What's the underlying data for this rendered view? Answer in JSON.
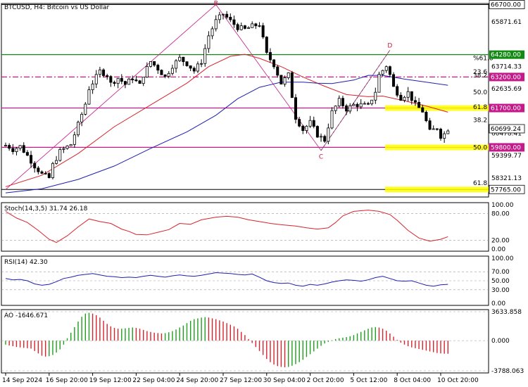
{
  "header": {
    "title": "BTCUSD, H4:  Bitcoin vs US Dollar"
  },
  "chart_data": {
    "type": "candlestick",
    "symbol": "BTCUSD",
    "timeframe": "H4",
    "price_axis": {
      "range": [
        57765,
        66700
      ],
      "ticks": [
        "65871.61",
        "63714.33",
        "62635.69",
        "60478.41",
        "59399.77",
        "58321.13"
      ]
    },
    "price_levels": [
      {
        "value": 66700,
        "label": "66700.00",
        "style": "line",
        "color": "#000000"
      },
      {
        "value": 64280,
        "label": "64280.00",
        "style": "line",
        "color": "#138a13"
      },
      {
        "value": 63200,
        "label": "63200.00",
        "style": "dashdot",
        "color": "#c51a8a"
      },
      {
        "value": 61700,
        "label": "61700.00",
        "style": "line",
        "color": "#c51a8a"
      },
      {
        "value": 59800,
        "label": "59800.00",
        "style": "line",
        "color": "#c51a8a"
      },
      {
        "value": 57765,
        "label": "57765.00",
        "style": "line",
        "color": "#000000"
      }
    ],
    "current_price": {
      "value": 60699,
      "label": "60699.24"
    },
    "fib_labels": [
      {
        "text": "%61.8",
        "price": 64120
      },
      {
        "text": "23.6",
        "price": 63460
      },
      {
        "text": "38.2",
        "price": 63290
      },
      {
        "text": "50.0",
        "price": 62470
      },
      {
        "text": "61.8",
        "price": 61750
      },
      {
        "text": "38.2",
        "price": 61130
      },
      {
        "text": "50.0",
        "price": 59790
      },
      {
        "text": "61.8",
        "price": 58080
      }
    ],
    "highlight_zones": [
      {
        "price": 61700
      },
      {
        "price": 59800
      },
      {
        "price": 57765
      }
    ],
    "wave_labels": [
      {
        "text": "B",
        "bar": 58,
        "price": 66660
      },
      {
        "text": "C",
        "bar": 87,
        "price": 59250
      },
      {
        "text": "D",
        "bar": 106,
        "price": 64630
      }
    ],
    "x_labels": [
      "14 Sep 2024",
      "16 Sep 20:00",
      "19 Sep 12:00",
      "22 Sep 04:00",
      "24 Sep 20:00",
      "27 Sep 12:00",
      "30 Sep 04:00",
      "2 Oct 20:00",
      "5 Oct 12:00",
      "8 Oct 04:00",
      "10 Oct 20:00"
    ],
    "x_label_bars": [
      0,
      12,
      24,
      36,
      48,
      60,
      72,
      84,
      96,
      108,
      120
    ],
    "anchors": [
      [
        0,
        59900
      ],
      [
        1,
        59820
      ],
      [
        2,
        59700
      ],
      [
        4,
        59850
      ],
      [
        6,
        59400
      ],
      [
        8,
        58900
      ],
      [
        10,
        58500
      ],
      [
        12,
        58320
      ],
      [
        13,
        58950
      ],
      [
        15,
        59600
      ],
      [
        18,
        59950
      ],
      [
        20,
        60900
      ],
      [
        22,
        61900
      ],
      [
        23,
        62650
      ],
      [
        25,
        63200
      ],
      [
        26,
        63480
      ],
      [
        28,
        63300
      ],
      [
        29,
        62880
      ],
      [
        31,
        63150
      ],
      [
        33,
        62850
      ],
      [
        35,
        63150
      ],
      [
        37,
        62800
      ],
      [
        38,
        63300
      ],
      [
        40,
        63950
      ],
      [
        42,
        63600
      ],
      [
        44,
        63200
      ],
      [
        46,
        63750
      ],
      [
        48,
        64100
      ],
      [
        50,
        63850
      ],
      [
        52,
        63500
      ],
      [
        54,
        63950
      ],
      [
        56,
        65200
      ],
      [
        58,
        65900
      ],
      [
        60,
        66250
      ],
      [
        62,
        65900
      ],
      [
        64,
        65600
      ],
      [
        66,
        65500
      ],
      [
        68,
        65650
      ],
      [
        70,
        65750
      ],
      [
        72,
        64300
      ],
      [
        74,
        63800
      ],
      [
        76,
        62900
      ],
      [
        78,
        63300
      ],
      [
        80,
        61250
      ],
      [
        82,
        60650
      ],
      [
        84,
        61000
      ],
      [
        86,
        60400
      ],
      [
        88,
        60150
      ],
      [
        90,
        61500
      ],
      [
        92,
        62050
      ],
      [
        94,
        61650
      ],
      [
        96,
        61850
      ],
      [
        98,
        61850
      ],
      [
        100,
        61800
      ],
      [
        102,
        62500
      ],
      [
        103,
        63300
      ],
      [
        105,
        63750
      ],
      [
        106,
        63300
      ],
      [
        107,
        62700
      ],
      [
        109,
        62200
      ],
      [
        111,
        62450
      ],
      [
        113,
        61850
      ],
      [
        115,
        61550
      ],
      [
        116,
        61050
      ],
      [
        117,
        60550
      ],
      [
        119,
        60750
      ],
      [
        120,
        60350
      ],
      [
        121,
        60450
      ],
      [
        122,
        60700
      ]
    ],
    "series": [
      {
        "name": "MA fast",
        "color": "#d9232c",
        "points": [
          [
            0,
            57900
          ],
          [
            10,
            58450
          ],
          [
            20,
            59500
          ],
          [
            30,
            60800
          ],
          [
            40,
            61850
          ],
          [
            50,
            62900
          ],
          [
            56,
            63700
          ],
          [
            62,
            64200
          ],
          [
            66,
            64300
          ],
          [
            70,
            64100
          ],
          [
            76,
            63700
          ],
          [
            82,
            63200
          ],
          [
            88,
            62750
          ],
          [
            94,
            62350
          ],
          [
            100,
            62250
          ],
          [
            104,
            62280
          ],
          [
            110,
            62050
          ],
          [
            116,
            61800
          ],
          [
            122,
            61500
          ]
        ]
      },
      {
        "name": "MA slow",
        "color": "#1f1fb0",
        "points": [
          [
            0,
            57600
          ],
          [
            10,
            57800
          ],
          [
            20,
            58250
          ],
          [
            30,
            58900
          ],
          [
            40,
            59750
          ],
          [
            50,
            60550
          ],
          [
            58,
            61350
          ],
          [
            64,
            62150
          ],
          [
            70,
            62700
          ],
          [
            76,
            62950
          ],
          [
            82,
            62950
          ],
          [
            86,
            62900
          ],
          [
            90,
            62880
          ],
          [
            96,
            63050
          ],
          [
            100,
            63280
          ],
          [
            104,
            63280
          ],
          [
            110,
            63100
          ],
          [
            116,
            62950
          ],
          [
            122,
            62800
          ]
        ]
      }
    ],
    "indicators": [
      {
        "name": "Stoch(14,3,5)",
        "label": "Stoch(14,3,5) 31.74 26.18",
        "ticks": [
          "100.00",
          "80.00",
          "20.00",
          "0.00"
        ],
        "ylim": [
          0,
          100
        ],
        "series": [
          {
            "color": "#d9232c",
            "points": [
              [
                0,
                85
              ],
              [
                3,
                70
              ],
              [
                6,
                60
              ],
              [
                9,
                42
              ],
              [
                12,
                22
              ],
              [
                14,
                15
              ],
              [
                17,
                30
              ],
              [
                20,
                50
              ],
              [
                23,
                68
              ],
              [
                26,
                62
              ],
              [
                29,
                58
              ],
              [
                32,
                45
              ],
              [
                34,
                40
              ],
              [
                36,
                33
              ],
              [
                39,
                32
              ],
              [
                42,
                38
              ],
              [
                45,
                44
              ],
              [
                48,
                58
              ],
              [
                51,
                56
              ],
              [
                54,
                66
              ],
              [
                58,
                72
              ],
              [
                61,
                74
              ],
              [
                64,
                72
              ],
              [
                67,
                66
              ],
              [
                70,
                62
              ],
              [
                73,
                58
              ],
              [
                76,
                55
              ],
              [
                80,
                52
              ],
              [
                83,
                48
              ],
              [
                86,
                45
              ],
              [
                89,
                48
              ],
              [
                91,
                60
              ],
              [
                93,
                75
              ],
              [
                96,
                85
              ],
              [
                100,
                88
              ],
              [
                103,
                85
              ],
              [
                106,
                78
              ],
              [
                108,
                65
              ],
              [
                111,
                42
              ],
              [
                114,
                25
              ],
              [
                117,
                18
              ],
              [
                120,
                22
              ],
              [
                122,
                28
              ]
            ]
          }
        ]
      },
      {
        "name": "RSI(14)",
        "label": "RSI(14) 42.30",
        "ticks": [
          "100.00",
          "70.00",
          "50.00",
          "30.00",
          "0.00"
        ],
        "ylim": [
          0,
          100
        ],
        "series": [
          {
            "color": "#1f1fb0",
            "points": [
              [
                0,
                55
              ],
              [
                2,
                52
              ],
              [
                4,
                53
              ],
              [
                6,
                50
              ],
              [
                8,
                43
              ],
              [
                10,
                40
              ],
              [
                12,
                42
              ],
              [
                14,
                48
              ],
              [
                16,
                55
              ],
              [
                18,
                58
              ],
              [
                20,
                62
              ],
              [
                22,
                64
              ],
              [
                24,
                66
              ],
              [
                26,
                63
              ],
              [
                28,
                60
              ],
              [
                30,
                59
              ],
              [
                32,
                57
              ],
              [
                34,
                58
              ],
              [
                36,
                57
              ],
              [
                38,
                60
              ],
              [
                40,
                62
              ],
              [
                42,
                60
              ],
              [
                44,
                58
              ],
              [
                46,
                61
              ],
              [
                48,
                63
              ],
              [
                50,
                61
              ],
              [
                52,
                60
              ],
              [
                54,
                62
              ],
              [
                56,
                65
              ],
              [
                58,
                68
              ],
              [
                60,
                67
              ],
              [
                62,
                66
              ],
              [
                64,
                64
              ],
              [
                66,
                63
              ],
              [
                68,
                65
              ],
              [
                70,
                58
              ],
              [
                72,
                50
              ],
              [
                74,
                46
              ],
              [
                76,
                44
              ],
              [
                78,
                45
              ],
              [
                80,
                40
              ],
              [
                82,
                38
              ],
              [
                84,
                42
              ],
              [
                86,
                40
              ],
              [
                88,
                43
              ],
              [
                90,
                47
              ],
              [
                92,
                50
              ],
              [
                94,
                52
              ],
              [
                96,
                51
              ],
              [
                98,
                49
              ],
              [
                100,
                52
              ],
              [
                102,
                57
              ],
              [
                104,
                60
              ],
              [
                106,
                55
              ],
              [
                108,
                50
              ],
              [
                110,
                49
              ],
              [
                112,
                50
              ],
              [
                114,
                45
              ],
              [
                116,
                40
              ],
              [
                118,
                38
              ],
              [
                120,
                41
              ],
              [
                122,
                42
              ]
            ]
          }
        ]
      },
      {
        "name": "AO",
        "label": "AO -1646.671",
        "ticks": [
          "3633.858",
          "0.000",
          "-3788.063"
        ],
        "ylim": [
          -3788,
          3634
        ],
        "values": [
          -500,
          -600,
          -700,
          -800,
          -850,
          -900,
          -950,
          -1000,
          -1300,
          -1600,
          -1900,
          -2000,
          -1950,
          -1800,
          -1500,
          -1100,
          -500,
          300,
          1000,
          1700,
          2400,
          3000,
          3400,
          3500,
          3400,
          3200,
          2900,
          2500,
          2100,
          1800,
          1600,
          1500,
          1500,
          1550,
          1600,
          1650,
          1600,
          1500,
          1350,
          1200,
          1100,
          1000,
          950,
          900,
          950,
          1050,
          1200,
          1400,
          1650,
          1900,
          2200,
          2500,
          2700,
          2800,
          2900,
          2950,
          2900,
          2800,
          2700,
          2550,
          2400,
          2200,
          2000,
          1800,
          1500,
          1100,
          700,
          200,
          -300,
          -800,
          -1300,
          -1800,
          -2300,
          -2700,
          -3000,
          -3200,
          -3300,
          -3350,
          -3300,
          -3150,
          -2950,
          -2700,
          -2400,
          -2050,
          -1700,
          -1350,
          -1000,
          -650,
          -350,
          -150,
          50,
          200,
          300,
          380,
          450,
          550,
          700,
          900,
          1100,
          1300,
          1500,
          1650,
          1700,
          1650,
          1500,
          1250,
          900,
          500,
          100,
          -250,
          -500,
          -700,
          -850,
          -950,
          -1050,
          -1150,
          -1250,
          -1350,
          -1450,
          -1550,
          -1600,
          -1640,
          -1647
        ]
      }
    ]
  }
}
